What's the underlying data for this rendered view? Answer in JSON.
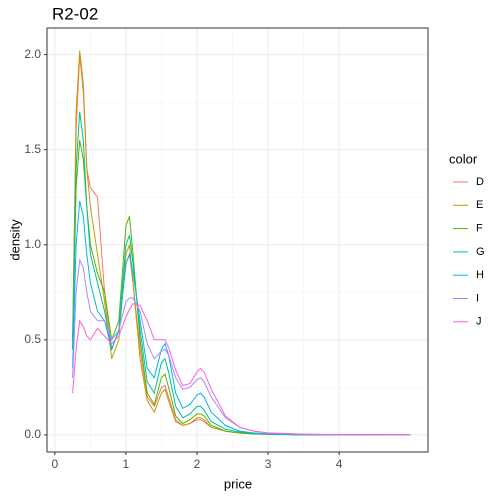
{
  "chart_data": {
    "type": "line",
    "title": "R2-02",
    "x_label": "price",
    "y_label": "density",
    "legend_title": "color",
    "legend": "right",
    "grid": true,
    "x": [
      0.25,
      0.3,
      0.35,
      0.4,
      0.45,
      0.5,
      0.6,
      0.7,
      0.8,
      0.9,
      1.0,
      1.05,
      1.1,
      1.2,
      1.3,
      1.4,
      1.5,
      1.55,
      1.6,
      1.7,
      1.8,
      1.9,
      2.0,
      2.05,
      2.1,
      2.2,
      2.4,
      2.6,
      2.8,
      3.0,
      3.5,
      4.0,
      5.0
    ],
    "xlim": [
      -0.11,
      5.25
    ],
    "xticks": [
      0,
      1,
      2,
      3,
      4
    ],
    "ylim": [
      -0.09,
      2.14
    ],
    "yticks": [
      {
        "value": 0,
        "label": "0.0"
      },
      0.5,
      {
        "value": 1,
        "label": "1.0"
      },
      1.5,
      {
        "value": 2,
        "label": "2.0"
      }
    ],
    "series": [
      {
        "name": "D",
        "color": "#F8766D",
        "values": [
          0.5,
          1.6,
          2.0,
          1.8,
          1.4,
          1.3,
          1.25,
          0.75,
          0.45,
          0.55,
          0.9,
          0.95,
          0.8,
          0.45,
          0.2,
          0.15,
          0.25,
          0.26,
          0.2,
          0.08,
          0.05,
          0.06,
          0.08,
          0.08,
          0.07,
          0.04,
          0.02,
          0.01,
          0.005,
          0.003,
          0,
          0,
          0
        ]
      },
      {
        "name": "E",
        "color": "#C49A00",
        "values": [
          0.5,
          1.7,
          2.02,
          1.85,
          1.4,
          1.2,
          0.95,
          0.7,
          0.4,
          0.5,
          0.95,
          1.0,
          0.8,
          0.4,
          0.18,
          0.12,
          0.22,
          0.24,
          0.18,
          0.07,
          0.05,
          0.06,
          0.09,
          0.09,
          0.08,
          0.04,
          0.02,
          0.01,
          0.005,
          0.003,
          0,
          0,
          0
        ]
      },
      {
        "name": "F",
        "color": "#53B400",
        "values": [
          0.45,
          1.3,
          1.55,
          1.45,
          1.2,
          1.0,
          0.85,
          0.75,
          0.5,
          0.6,
          1.1,
          1.15,
          0.95,
          0.5,
          0.22,
          0.16,
          0.3,
          0.32,
          0.25,
          0.1,
          0.06,
          0.08,
          0.11,
          0.11,
          0.1,
          0.05,
          0.02,
          0.01,
          0.005,
          0.003,
          0,
          0,
          0
        ]
      },
      {
        "name": "G",
        "color": "#00C094",
        "values": [
          0.45,
          1.4,
          1.7,
          1.55,
          1.2,
          0.95,
          0.8,
          0.65,
          0.45,
          0.55,
          1.0,
          1.05,
          0.9,
          0.55,
          0.28,
          0.22,
          0.38,
          0.4,
          0.33,
          0.15,
          0.09,
          0.11,
          0.15,
          0.15,
          0.13,
          0.07,
          0.03,
          0.015,
          0.008,
          0.004,
          0,
          0,
          0
        ]
      },
      {
        "name": "H",
        "color": "#00B6EB",
        "values": [
          0.35,
          1.0,
          1.23,
          1.15,
          0.95,
          0.8,
          0.65,
          0.6,
          0.45,
          0.55,
          0.9,
          0.95,
          0.85,
          0.6,
          0.35,
          0.3,
          0.45,
          0.48,
          0.42,
          0.22,
          0.14,
          0.16,
          0.21,
          0.22,
          0.2,
          0.12,
          0.05,
          0.02,
          0.01,
          0.005,
          0,
          0,
          0
        ]
      },
      {
        "name": "I",
        "color": "#A58AFF",
        "values": [
          0.3,
          0.75,
          0.92,
          0.88,
          0.75,
          0.65,
          0.6,
          0.6,
          0.5,
          0.55,
          0.7,
          0.72,
          0.72,
          0.65,
          0.48,
          0.4,
          0.44,
          0.45,
          0.42,
          0.3,
          0.24,
          0.25,
          0.29,
          0.3,
          0.28,
          0.2,
          0.09,
          0.04,
          0.02,
          0.01,
          0.003,
          0,
          0
        ]
      },
      {
        "name": "J",
        "color": "#FB61D7",
        "values": [
          0.22,
          0.45,
          0.6,
          0.57,
          0.52,
          0.5,
          0.56,
          0.52,
          0.48,
          0.52,
          0.62,
          0.66,
          0.69,
          0.68,
          0.6,
          0.5,
          0.5,
          0.5,
          0.46,
          0.34,
          0.26,
          0.27,
          0.33,
          0.35,
          0.33,
          0.24,
          0.1,
          0.04,
          0.02,
          0.01,
          0.004,
          0.002,
          0
        ]
      }
    ]
  }
}
